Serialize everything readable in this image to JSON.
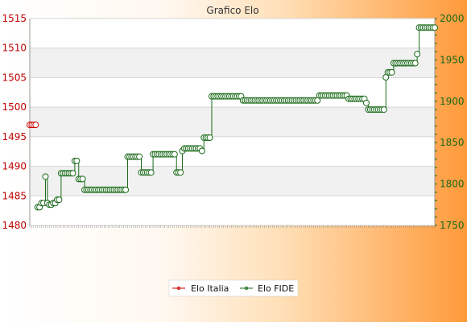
{
  "chart_data": {
    "type": "line",
    "title": "Grafico Elo",
    "left_axis": {
      "min": 1480,
      "max": 1515,
      "ticks": [
        1480,
        1485,
        1490,
        1495,
        1500,
        1505,
        1510,
        1515
      ],
      "color": "#cc0000"
    },
    "right_axis": {
      "min": 1750,
      "max": 2000,
      "ticks": [
        1750,
        1800,
        1850,
        1900,
        1950,
        2000
      ],
      "color": "#1a6a1a"
    },
    "grid": true,
    "legend_placement": "bottom-center",
    "series": [
      {
        "name": "Elo Italia",
        "axis": "left",
        "color": "#cc0000",
        "start_index": 0,
        "values": [
          1497,
          1497,
          1497,
          1497
        ]
      },
      {
        "name": "Elo FIDE",
        "axis": "right",
        "color": "#1a6a1a",
        "start_index": 4,
        "values": [
          1772,
          1772,
          1777,
          1777,
          1809,
          1777,
          1775,
          1775,
          1777,
          1777,
          1781,
          1781,
          1813,
          1813,
          1813,
          1813,
          1813,
          1813,
          1813,
          1828,
          1828,
          1806,
          1806,
          1806,
          1793,
          1793,
          1793,
          1793,
          1793,
          1793,
          1793,
          1793,
          1793,
          1793,
          1793,
          1793,
          1793,
          1793,
          1793,
          1793,
          1793,
          1793,
          1793,
          1793,
          1793,
          1793,
          1833,
          1833,
          1833,
          1833,
          1833,
          1833,
          1833,
          1814,
          1814,
          1814,
          1814,
          1814,
          1814,
          1836,
          1836,
          1836,
          1836,
          1836,
          1836,
          1836,
          1836,
          1836,
          1836,
          1836,
          1836,
          1814,
          1814,
          1814,
          1840,
          1843,
          1843,
          1843,
          1843,
          1843,
          1843,
          1843,
          1843,
          1843,
          1840,
          1856,
          1856,
          1856,
          1856,
          1906,
          1906,
          1906,
          1906,
          1906,
          1906,
          1906,
          1906,
          1906,
          1906,
          1906,
          1906,
          1906,
          1906,
          1906,
          1906,
          1901,
          1901,
          1901,
          1901,
          1901,
          1901,
          1901,
          1901,
          1901,
          1901,
          1901,
          1901,
          1901,
          1901,
          1901,
          1901,
          1901,
          1901,
          1901,
          1901,
          1901,
          1901,
          1901,
          1901,
          1901,
          1901,
          1901,
          1901,
          1901,
          1901,
          1901,
          1901,
          1901,
          1901,
          1901,
          1901,
          1901,
          1901,
          1901,
          1907,
          1907,
          1907,
          1907,
          1907,
          1907,
          1907,
          1907,
          1907,
          1907,
          1907,
          1907,
          1907,
          1907,
          1907,
          1903,
          1903,
          1903,
          1903,
          1903,
          1903,
          1903,
          1903,
          1903,
          1898,
          1890,
          1890,
          1890,
          1890,
          1890,
          1890,
          1890,
          1890,
          1890,
          1929,
          1935,
          1935,
          1935,
          1946,
          1946,
          1946,
          1946,
          1946,
          1946,
          1946,
          1946,
          1946,
          1946,
          1946,
          1946,
          1957,
          1989,
          1989,
          1989,
          1989,
          1989,
          1989,
          1989,
          1989,
          1989
        ]
      }
    ]
  },
  "legend": {
    "items": [
      {
        "label": "Elo Italia",
        "color": "#cc0000"
      },
      {
        "label": "Elo FIDE",
        "color": "#1a6a1a"
      }
    ]
  }
}
